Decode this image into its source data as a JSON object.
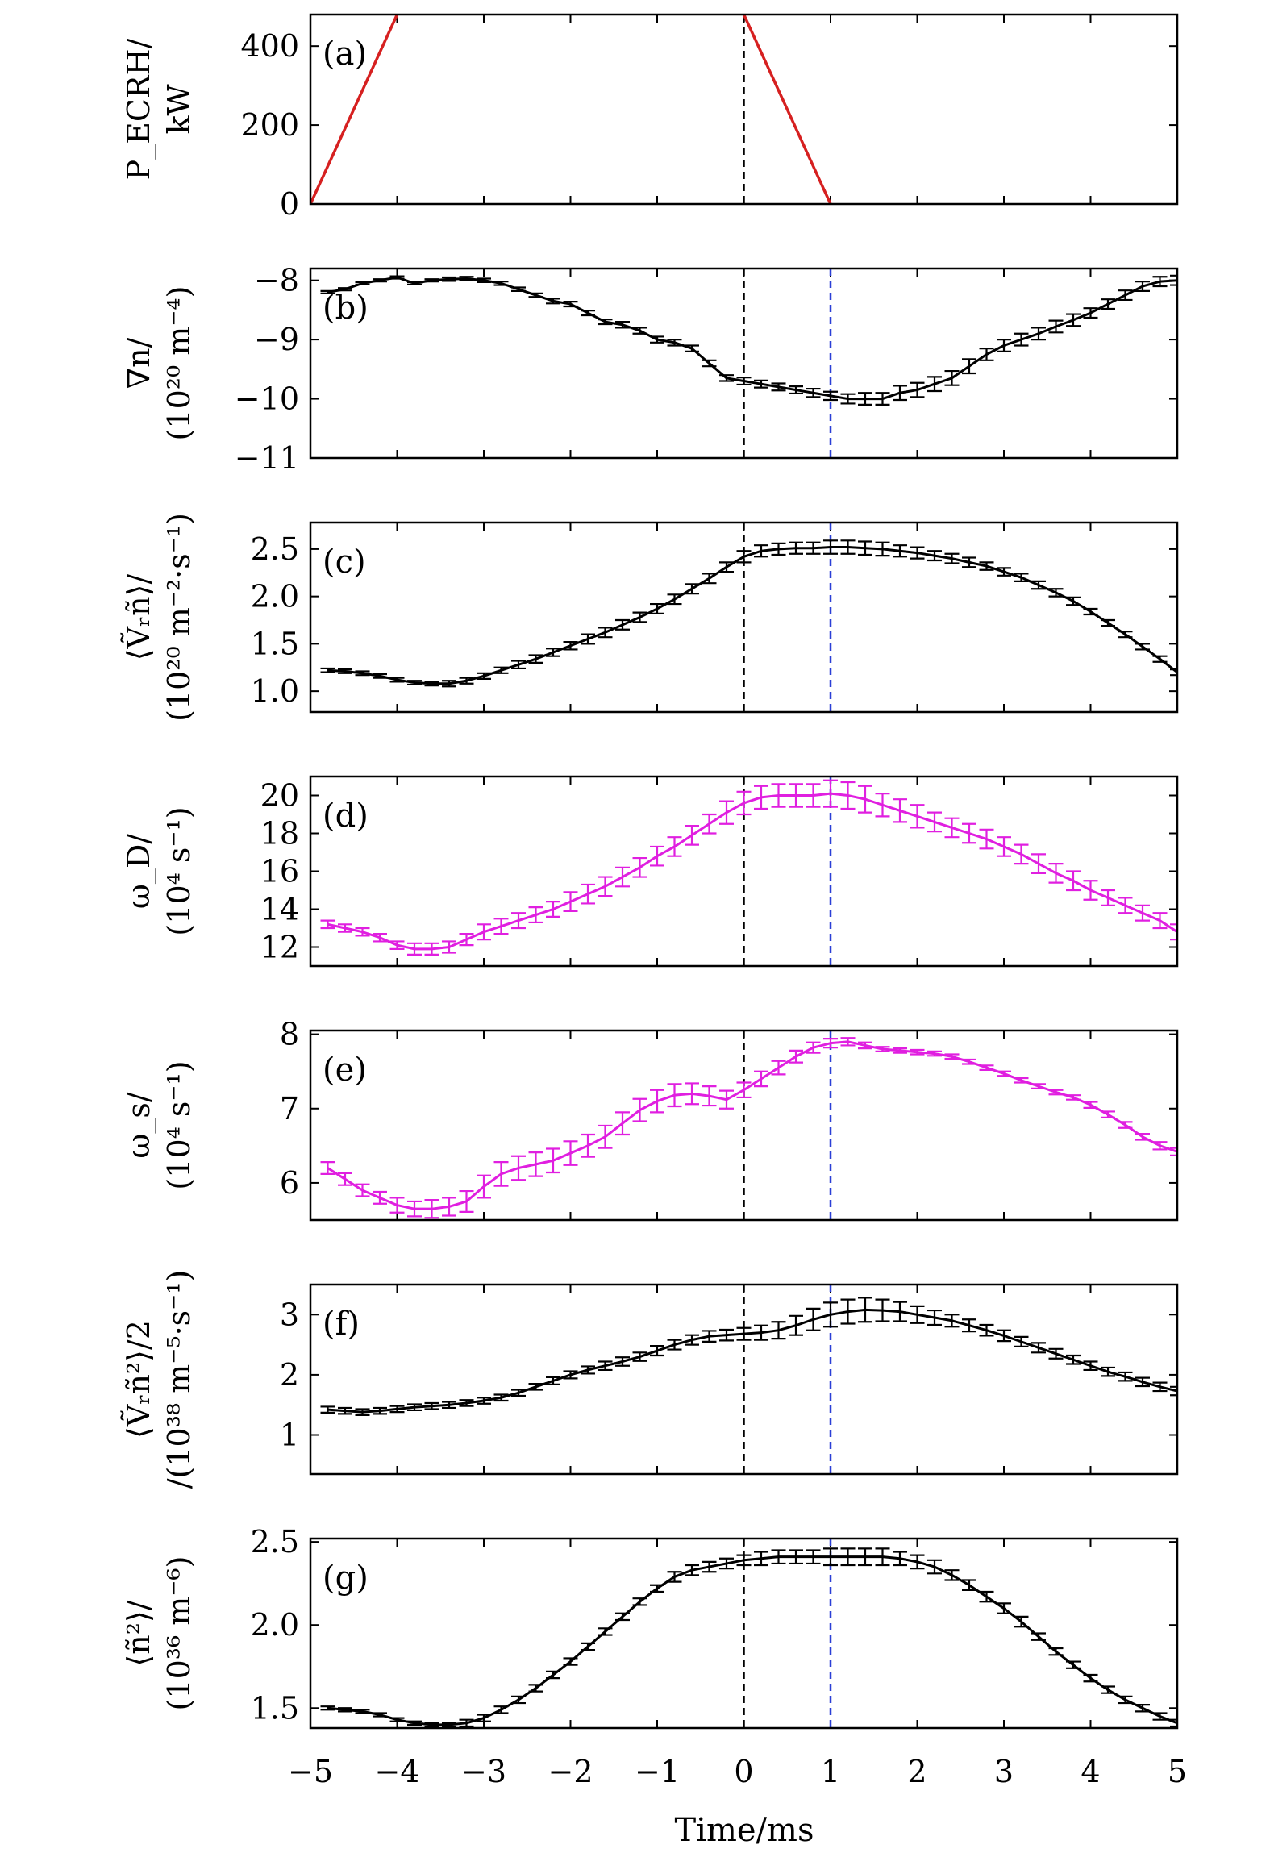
{
  "figure": {
    "xlabel": "Time/ms",
    "xlim": [
      -5,
      5
    ],
    "xticks": [
      -5,
      -4,
      -3,
      -2,
      -1,
      0,
      1,
      2,
      3,
      4,
      5
    ],
    "xtick_labels": [
      "−5",
      "−4",
      "−3",
      "−2",
      "−1",
      "0",
      "1",
      "2",
      "3",
      "4",
      "5"
    ],
    "vlines": [
      {
        "x": 0,
        "color": "#000000"
      },
      {
        "x": 1,
        "color": "#2a3fd6"
      }
    ]
  },
  "chart_data": [
    {
      "panel": "(a)",
      "type": "line",
      "ylabel": "P_ECRH/ kW",
      "ylabel_lines": [
        "P_ECRH/",
        "kW"
      ],
      "ylim": [
        0,
        480
      ],
      "yticks": [
        0,
        200,
        400
      ],
      "ytick_labels": [
        "0",
        "200",
        "400"
      ],
      "color": "#d62020",
      "errorbars": false,
      "vlines": [
        0
      ],
      "series": [
        {
          "segments": [
            {
              "x": [
                -5,
                -4
              ],
              "y": [
                0,
                480
              ]
            },
            {
              "x": [
                0,
                1
              ],
              "y": [
                480,
                0
              ]
            }
          ]
        }
      ]
    },
    {
      "panel": "(b)",
      "type": "line",
      "ylabel": "∇n/ (10^20 m^−4)",
      "ylabel_lines": [
        "∇n/",
        "(10²⁰ m⁻⁴)"
      ],
      "ylim": [
        -11,
        -7.8
      ],
      "yticks": [
        -8,
        -9,
        -10,
        -11
      ],
      "ytick_labels": [
        "−8",
        "−9",
        "−10",
        "−11"
      ],
      "color": "#000000",
      "errorbars": true,
      "vlines": [
        0,
        1
      ],
      "x": [
        -4.8,
        -4.6,
        -4.4,
        -4.2,
        -4.0,
        -3.8,
        -3.6,
        -3.4,
        -3.2,
        -3.0,
        -2.8,
        -2.6,
        -2.4,
        -2.2,
        -2.0,
        -1.8,
        -1.6,
        -1.4,
        -1.2,
        -1.0,
        -0.8,
        -0.6,
        -0.4,
        -0.2,
        0.0,
        0.2,
        0.4,
        0.6,
        0.8,
        1.0,
        1.2,
        1.4,
        1.6,
        1.8,
        2.0,
        2.2,
        2.4,
        2.6,
        2.8,
        3.0,
        3.2,
        3.4,
        3.6,
        3.8,
        4.0,
        4.2,
        4.4,
        4.6,
        4.8,
        5.0
      ],
      "y": [
        -8.2,
        -8.15,
        -8.05,
        -8.0,
        -7.95,
        -8.05,
        -8.0,
        -7.98,
        -7.97,
        -8.0,
        -8.05,
        -8.15,
        -8.25,
        -8.35,
        -8.4,
        -8.55,
        -8.7,
        -8.75,
        -8.85,
        -9.0,
        -9.05,
        -9.15,
        -9.4,
        -9.65,
        -9.7,
        -9.75,
        -9.8,
        -9.85,
        -9.9,
        -9.95,
        -10.0,
        -10.0,
        -10.0,
        -9.9,
        -9.85,
        -9.75,
        -9.65,
        -9.45,
        -9.25,
        -9.1,
        -9.0,
        -8.9,
        -8.78,
        -8.67,
        -8.55,
        -8.4,
        -8.25,
        -8.1,
        -8.02,
        -8.0
      ],
      "err": [
        0.02,
        0.02,
        0.02,
        0.02,
        0.02,
        0.02,
        0.02,
        0.03,
        0.03,
        0.03,
        0.03,
        0.03,
        0.03,
        0.04,
        0.04,
        0.04,
        0.04,
        0.05,
        0.05,
        0.05,
        0.05,
        0.05,
        0.05,
        0.05,
        0.06,
        0.06,
        0.06,
        0.06,
        0.07,
        0.07,
        0.08,
        0.1,
        0.1,
        0.12,
        0.12,
        0.12,
        0.12,
        0.12,
        0.1,
        0.1,
        0.1,
        0.1,
        0.1,
        0.1,
        0.08,
        0.08,
        0.08,
        0.08,
        0.08,
        0.08
      ]
    },
    {
      "panel": "(c)",
      "type": "line",
      "ylabel": "⟨Ṽr ñ⟩/ (10^20 m^−2·s^−1)",
      "ylabel_lines": [
        "⟨Ṽᵣñ⟩/",
        "(10²⁰ m⁻²·s⁻¹)"
      ],
      "ylim": [
        0.78,
        2.78
      ],
      "yticks": [
        1.0,
        1.5,
        2.0,
        2.5
      ],
      "ytick_labels": [
        "1.0",
        "1.5",
        "2.0",
        "2.5"
      ],
      "color": "#000000",
      "errorbars": true,
      "vlines": [
        0,
        1
      ],
      "x": [
        -4.8,
        -4.6,
        -4.4,
        -4.2,
        -4.0,
        -3.8,
        -3.6,
        -3.4,
        -3.2,
        -3.0,
        -2.8,
        -2.6,
        -2.4,
        -2.2,
        -2.0,
        -1.8,
        -1.6,
        -1.4,
        -1.2,
        -1.0,
        -0.8,
        -0.6,
        -0.4,
        -0.2,
        0.0,
        0.2,
        0.4,
        0.6,
        0.8,
        1.0,
        1.2,
        1.4,
        1.6,
        1.8,
        2.0,
        2.2,
        2.4,
        2.6,
        2.8,
        3.0,
        3.2,
        3.4,
        3.6,
        3.8,
        4.0,
        4.2,
        4.4,
        4.6,
        4.8,
        5.0
      ],
      "y": [
        1.22,
        1.21,
        1.19,
        1.16,
        1.12,
        1.09,
        1.08,
        1.08,
        1.11,
        1.16,
        1.22,
        1.28,
        1.34,
        1.41,
        1.48,
        1.55,
        1.62,
        1.7,
        1.78,
        1.87,
        1.97,
        2.08,
        2.19,
        2.31,
        2.42,
        2.48,
        2.5,
        2.51,
        2.51,
        2.52,
        2.52,
        2.51,
        2.5,
        2.48,
        2.46,
        2.43,
        2.4,
        2.36,
        2.32,
        2.26,
        2.2,
        2.12,
        2.04,
        1.95,
        1.84,
        1.72,
        1.6,
        1.47,
        1.34,
        1.2
      ],
      "err": [
        0.02,
        0.02,
        0.02,
        0.02,
        0.02,
        0.02,
        0.02,
        0.03,
        0.03,
        0.03,
        0.03,
        0.04,
        0.04,
        0.04,
        0.04,
        0.05,
        0.05,
        0.05,
        0.05,
        0.05,
        0.05,
        0.05,
        0.05,
        0.05,
        0.06,
        0.06,
        0.06,
        0.06,
        0.06,
        0.07,
        0.07,
        0.07,
        0.07,
        0.06,
        0.06,
        0.05,
        0.05,
        0.05,
        0.04,
        0.04,
        0.04,
        0.04,
        0.04,
        0.04,
        0.03,
        0.03,
        0.03,
        0.03,
        0.03,
        0.03
      ]
    },
    {
      "panel": "(d)",
      "type": "line",
      "ylabel": "ωD/ (10^4 s^−1)",
      "ylabel_lines": [
        "ω_D/",
        "(10⁴ s⁻¹)"
      ],
      "ylim": [
        11,
        21
      ],
      "yticks": [
        12,
        14,
        16,
        18,
        20
      ],
      "ytick_labels": [
        "12",
        "14",
        "16",
        "18",
        "20"
      ],
      "color": "#e01fe0",
      "errorbars": true,
      "vlines": [
        0,
        1
      ],
      "x": [
        -4.8,
        -4.6,
        -4.4,
        -4.2,
        -4.0,
        -3.8,
        -3.6,
        -3.4,
        -3.2,
        -3.0,
        -2.8,
        -2.6,
        -2.4,
        -2.2,
        -2.0,
        -1.8,
        -1.6,
        -1.4,
        -1.2,
        -1.0,
        -0.8,
        -0.6,
        -0.4,
        -0.2,
        0.0,
        0.2,
        0.4,
        0.6,
        0.8,
        1.0,
        1.2,
        1.4,
        1.6,
        1.8,
        2.0,
        2.2,
        2.4,
        2.6,
        2.8,
        3.0,
        3.2,
        3.4,
        3.6,
        3.8,
        4.0,
        4.2,
        4.4,
        4.6,
        4.8,
        5.0
      ],
      "y": [
        13.2,
        13.0,
        12.8,
        12.5,
        12.1,
        11.9,
        11.9,
        12.0,
        12.4,
        12.8,
        13.1,
        13.4,
        13.7,
        14.0,
        14.4,
        14.8,
        15.2,
        15.7,
        16.2,
        16.8,
        17.3,
        17.9,
        18.5,
        19.1,
        19.6,
        19.9,
        20.0,
        20.0,
        20.0,
        20.1,
        20.0,
        19.8,
        19.5,
        19.2,
        18.9,
        18.6,
        18.3,
        18.0,
        17.7,
        17.3,
        16.9,
        16.4,
        15.9,
        15.5,
        15.0,
        14.6,
        14.2,
        13.8,
        13.4,
        12.8
      ],
      "err": [
        0.2,
        0.2,
        0.2,
        0.2,
        0.2,
        0.3,
        0.3,
        0.3,
        0.3,
        0.4,
        0.4,
        0.4,
        0.4,
        0.4,
        0.5,
        0.5,
        0.5,
        0.5,
        0.5,
        0.5,
        0.5,
        0.5,
        0.5,
        0.6,
        0.6,
        0.6,
        0.6,
        0.6,
        0.6,
        0.7,
        0.7,
        0.7,
        0.6,
        0.6,
        0.6,
        0.5,
        0.5,
        0.5,
        0.5,
        0.5,
        0.5,
        0.5,
        0.5,
        0.5,
        0.5,
        0.4,
        0.4,
        0.4,
        0.4,
        0.4
      ]
    },
    {
      "panel": "(e)",
      "type": "line",
      "ylabel": "ωs/ (10^4 s^−1)",
      "ylabel_lines": [
        "ω_s/",
        "(10⁴ s⁻¹)"
      ],
      "ylim": [
        5.5,
        8.05
      ],
      "yticks": [
        6,
        7,
        8
      ],
      "ytick_labels": [
        "6",
        "7",
        "8"
      ],
      "color": "#e01fe0",
      "errorbars": true,
      "vlines": [
        0,
        1
      ],
      "x": [
        -4.8,
        -4.6,
        -4.4,
        -4.2,
        -4.0,
        -3.8,
        -3.6,
        -3.4,
        -3.2,
        -3.0,
        -2.8,
        -2.6,
        -2.4,
        -2.2,
        -2.0,
        -1.8,
        -1.6,
        -1.4,
        -1.2,
        -1.0,
        -0.8,
        -0.6,
        -0.4,
        -0.2,
        0.0,
        0.2,
        0.4,
        0.6,
        0.8,
        1.0,
        1.2,
        1.4,
        1.6,
        1.8,
        2.0,
        2.2,
        2.4,
        2.6,
        2.8,
        3.0,
        3.2,
        3.4,
        3.6,
        3.8,
        4.0,
        4.2,
        4.4,
        4.6,
        4.8,
        5.0
      ],
      "y": [
        6.2,
        6.05,
        5.9,
        5.8,
        5.7,
        5.65,
        5.65,
        5.68,
        5.75,
        5.95,
        6.12,
        6.2,
        6.25,
        6.3,
        6.4,
        6.5,
        6.62,
        6.8,
        6.98,
        7.1,
        7.18,
        7.2,
        7.17,
        7.12,
        7.25,
        7.4,
        7.55,
        7.7,
        7.82,
        7.88,
        7.9,
        7.85,
        7.8,
        7.78,
        7.76,
        7.74,
        7.7,
        7.63,
        7.55,
        7.47,
        7.38,
        7.3,
        7.22,
        7.15,
        7.05,
        6.92,
        6.78,
        6.62,
        6.5,
        6.42
      ],
      "err": [
        0.08,
        0.08,
        0.08,
        0.08,
        0.1,
        0.1,
        0.12,
        0.12,
        0.14,
        0.15,
        0.16,
        0.16,
        0.16,
        0.16,
        0.16,
        0.15,
        0.15,
        0.15,
        0.15,
        0.15,
        0.15,
        0.14,
        0.13,
        0.12,
        0.1,
        0.1,
        0.09,
        0.08,
        0.07,
        0.06,
        0.05,
        0.04,
        0.03,
        0.03,
        0.03,
        0.03,
        0.03,
        0.03,
        0.03,
        0.03,
        0.03,
        0.03,
        0.03,
        0.03,
        0.04,
        0.04,
        0.04,
        0.04,
        0.05,
        0.05
      ]
    },
    {
      "panel": "(f)",
      "type": "line",
      "ylabel": "⟨Ṽr ñ^2⟩/2 /(10^38 m^−5·s^−1)",
      "ylabel_lines": [
        "⟨Ṽᵣñ²⟩/2",
        "/(10³⁸ m⁻⁵·s⁻¹)"
      ],
      "ylim": [
        0.35,
        3.5
      ],
      "yticks": [
        1,
        2,
        3
      ],
      "ytick_labels": [
        "1",
        "2",
        "3"
      ],
      "color": "#000000",
      "errorbars": true,
      "vlines": [
        0,
        1
      ],
      "x": [
        -4.8,
        -4.6,
        -4.4,
        -4.2,
        -4.0,
        -3.8,
        -3.6,
        -3.4,
        -3.2,
        -3.0,
        -2.8,
        -2.6,
        -2.4,
        -2.2,
        -2.0,
        -1.8,
        -1.6,
        -1.4,
        -1.2,
        -1.0,
        -0.8,
        -0.6,
        -0.4,
        -0.2,
        0.0,
        0.2,
        0.4,
        0.6,
        0.8,
        1.0,
        1.2,
        1.4,
        1.6,
        1.8,
        2.0,
        2.2,
        2.4,
        2.6,
        2.8,
        3.0,
        3.2,
        3.4,
        3.6,
        3.8,
        4.0,
        4.2,
        4.4,
        4.6,
        4.8,
        5.0
      ],
      "y": [
        1.42,
        1.4,
        1.38,
        1.4,
        1.43,
        1.46,
        1.48,
        1.5,
        1.53,
        1.57,
        1.62,
        1.7,
        1.8,
        1.9,
        2.0,
        2.08,
        2.15,
        2.22,
        2.3,
        2.4,
        2.5,
        2.58,
        2.64,
        2.66,
        2.68,
        2.7,
        2.74,
        2.82,
        2.92,
        3.0,
        3.05,
        3.08,
        3.07,
        3.05,
        3.0,
        2.95,
        2.9,
        2.82,
        2.74,
        2.65,
        2.55,
        2.45,
        2.35,
        2.25,
        2.15,
        2.05,
        1.97,
        1.88,
        1.8,
        1.73
      ],
      "err": [
        0.05,
        0.05,
        0.05,
        0.05,
        0.05,
        0.05,
        0.05,
        0.05,
        0.05,
        0.05,
        0.05,
        0.05,
        0.05,
        0.06,
        0.06,
        0.06,
        0.07,
        0.07,
        0.07,
        0.08,
        0.08,
        0.08,
        0.09,
        0.09,
        0.1,
        0.12,
        0.14,
        0.16,
        0.18,
        0.2,
        0.2,
        0.2,
        0.18,
        0.16,
        0.14,
        0.12,
        0.1,
        0.1,
        0.09,
        0.09,
        0.08,
        0.08,
        0.08,
        0.07,
        0.07,
        0.07,
        0.07,
        0.07,
        0.07,
        0.07
      ]
    },
    {
      "panel": "(g)",
      "type": "line",
      "ylabel": "⟨ñ^2⟩/ (10^36 m^−6)",
      "ylabel_lines": [
        "⟨ñ²⟩/",
        "(10³⁶ m⁻⁶)"
      ],
      "ylim": [
        1.38,
        2.52
      ],
      "yticks": [
        1.5,
        2.0,
        2.5
      ],
      "ytick_labels": [
        "1.5",
        "2.0",
        "2.5"
      ],
      "color": "#000000",
      "errorbars": true,
      "vlines": [
        0,
        1
      ],
      "x": [
        -4.8,
        -4.6,
        -4.4,
        -4.2,
        -4.0,
        -3.8,
        -3.6,
        -3.4,
        -3.2,
        -3.0,
        -2.8,
        -2.6,
        -2.4,
        -2.2,
        -2.0,
        -1.8,
        -1.6,
        -1.4,
        -1.2,
        -1.0,
        -0.8,
        -0.6,
        -0.4,
        -0.2,
        0.0,
        0.2,
        0.4,
        0.6,
        0.8,
        1.0,
        1.2,
        1.4,
        1.6,
        1.8,
        2.0,
        2.2,
        2.4,
        2.6,
        2.8,
        3.0,
        3.2,
        3.4,
        3.6,
        3.8,
        4.0,
        4.2,
        4.4,
        4.6,
        4.8,
        5.0
      ],
      "y": [
        1.5,
        1.49,
        1.48,
        1.46,
        1.43,
        1.41,
        1.4,
        1.4,
        1.41,
        1.44,
        1.49,
        1.55,
        1.62,
        1.7,
        1.78,
        1.87,
        1.96,
        2.05,
        2.14,
        2.22,
        2.29,
        2.33,
        2.35,
        2.37,
        2.39,
        2.4,
        2.41,
        2.41,
        2.41,
        2.41,
        2.41,
        2.41,
        2.41,
        2.4,
        2.38,
        2.35,
        2.3,
        2.24,
        2.17,
        2.1,
        2.02,
        1.93,
        1.84,
        1.76,
        1.68,
        1.61,
        1.55,
        1.5,
        1.45,
        1.41
      ],
      "err": [
        0.01,
        0.01,
        0.01,
        0.01,
        0.01,
        0.01,
        0.01,
        0.01,
        0.02,
        0.02,
        0.02,
        0.02,
        0.02,
        0.02,
        0.02,
        0.02,
        0.02,
        0.02,
        0.02,
        0.02,
        0.03,
        0.03,
        0.03,
        0.03,
        0.03,
        0.04,
        0.04,
        0.04,
        0.04,
        0.05,
        0.05,
        0.05,
        0.05,
        0.04,
        0.04,
        0.04,
        0.03,
        0.03,
        0.03,
        0.03,
        0.03,
        0.02,
        0.02,
        0.02,
        0.02,
        0.02,
        0.02,
        0.02,
        0.02,
        0.02
      ]
    }
  ]
}
